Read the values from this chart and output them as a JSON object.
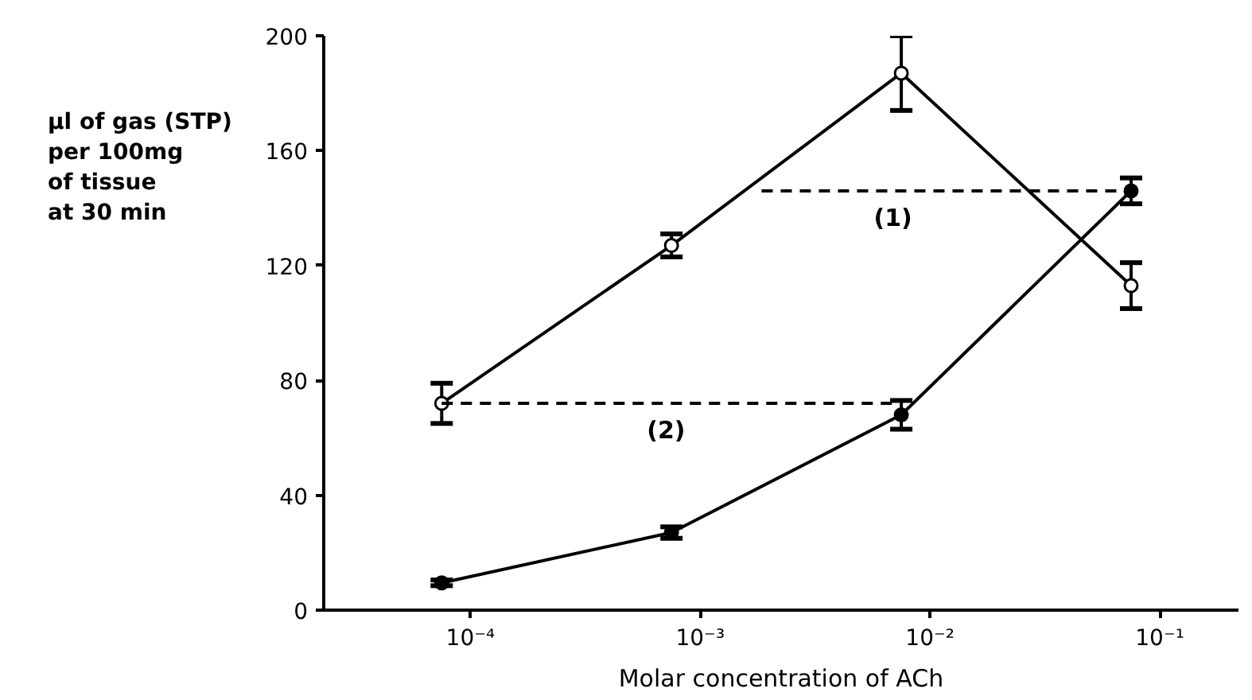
{
  "chart_data": {
    "type": "line",
    "xlabel": "Molar concentration of ACh",
    "ylabel": "μl of gas (STP)\nper 100mg\nof tissue\nat 30 min",
    "log": "x",
    "x": [
      7.5e-05,
      0.00075,
      0.0075,
      0.075
    ],
    "xlim": [
      2.3e-05,
      0.22
    ],
    "xticks": [
      {
        "value": 0.0001,
        "label": "10⁻⁴"
      },
      {
        "value": 0.001,
        "label": "10⁻³"
      },
      {
        "value": 0.01,
        "label": "10⁻²"
      },
      {
        "value": 0.1,
        "label": "10⁻¹"
      }
    ],
    "ylim": [
      0,
      200
    ],
    "yticks": [
      0,
      40,
      80,
      120,
      160,
      200
    ],
    "grid": false,
    "series": [
      {
        "color": "#000000",
        "marker": "circle",
        "values": [
          72,
          127,
          187,
          113
        ],
        "errors": [
          7,
          4,
          13,
          8
        ]
      },
      {
        "color": "#000000",
        "marker": "circle",
        "values": [
          9.5,
          27,
          68,
          146
        ],
        "errors": [
          1,
          2,
          5,
          4.5
        ]
      },
      {
        "color": "#000000",
        "marker": "none",
        "line_style": "dashed",
        "x": [
          0.00185,
          0.075
        ],
        "values": [
          146,
          146
        ]
      },
      {
        "color": "#000000",
        "marker": "none",
        "line_style": "dashed",
        "x": [
          7.5e-05,
          0.0075
        ],
        "values": [
          72,
          72
        ]
      }
    ],
    "annotations": [
      {
        "text": "(1)",
        "x": 0.0069,
        "y": 146
      },
      {
        "text": "(2)",
        "x": 0.00071,
        "y": 72
      }
    ]
  }
}
